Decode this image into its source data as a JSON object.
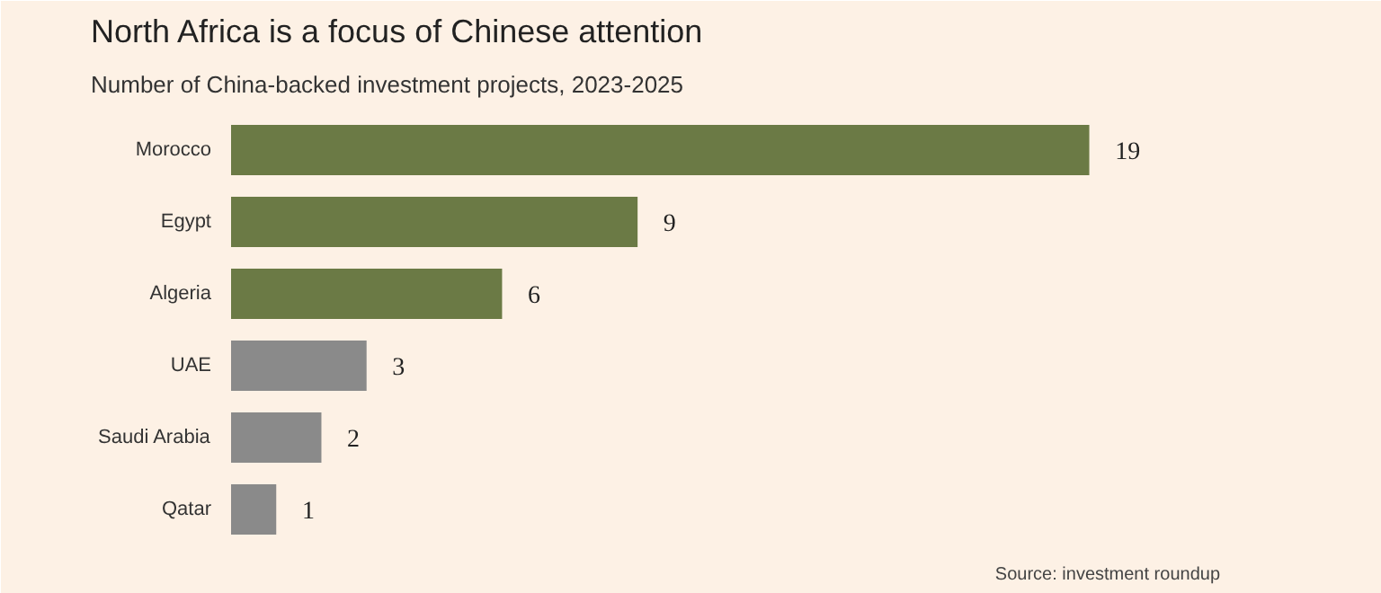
{
  "chart_data": {
    "type": "bar",
    "orientation": "horizontal",
    "title": "North Africa is a focus of Chinese attention",
    "subtitle": "Number of China-backed investment projects, 2023-2025",
    "categories": [
      "Morocco",
      "Egypt",
      "Algeria",
      "UAE",
      "Saudi Arabia",
      "Qatar"
    ],
    "values": [
      19,
      9,
      6,
      3,
      2,
      1
    ],
    "colors": [
      "#6b7a45",
      "#6b7a45",
      "#6b7a45",
      "#8a8a8a",
      "#8a8a8a",
      "#8a8a8a"
    ],
    "data_labels": true,
    "annotations": [
      "Source: investment roundup"
    ]
  }
}
